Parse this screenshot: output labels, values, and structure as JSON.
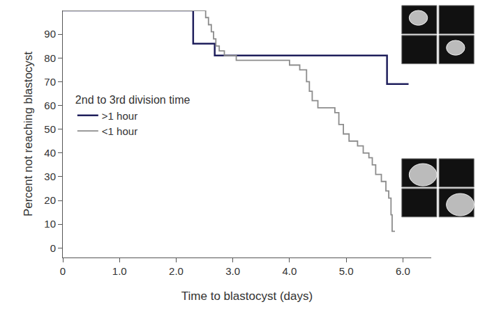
{
  "chart_data": {
    "type": "line",
    "line_style": "step",
    "x_label": "Time to blastocyst (days)",
    "y_label": "Percent not reaching blastocyst",
    "legend_title": "2nd to 3rd division time",
    "legend": "left",
    "grid": false,
    "xlim": [
      0,
      6.5
    ],
    "ylim": [
      -4,
      100
    ],
    "xticks": [
      0,
      {
        "value": 1,
        "label": "1.0"
      },
      {
        "value": 2,
        "label": "2.0"
      },
      {
        "value": 3,
        "label": "3.0"
      },
      {
        "value": 4,
        "label": "4.0"
      },
      {
        "value": 5,
        "label": "5.0"
      },
      {
        "value": 6,
        "label": "6.0"
      }
    ],
    "yticks": [
      0,
      10,
      20,
      30,
      40,
      50,
      60,
      70,
      80,
      90
    ],
    "series": [
      {
        "name": ">1 hour",
        "color": "#1f1f5c",
        "x": [
          0,
          2.3,
          2.68,
          5.72,
          6.1
        ],
        "values": [
          100,
          86,
          81,
          69,
          69
        ]
      },
      {
        "name": "<1 hour",
        "color": "#8c8c8c",
        "x": [
          0,
          2.52,
          2.57,
          2.62,
          2.66,
          2.7,
          2.76,
          2.85,
          3.0,
          3.06,
          4.0,
          4.18,
          4.3,
          4.35,
          4.4,
          4.5,
          4.8,
          4.87,
          4.95,
          5.05,
          5.2,
          5.3,
          5.4,
          5.46,
          5.52,
          5.62,
          5.7,
          5.75,
          5.79,
          5.81,
          5.86
        ],
        "values": [
          100,
          97,
          94,
          91,
          88,
          85,
          83,
          81,
          81,
          79,
          77,
          75,
          70,
          66,
          62,
          59,
          57,
          52,
          48,
          45,
          43,
          40,
          38,
          35,
          31,
          28,
          24,
          21,
          14,
          7,
          7
        ]
      }
    ]
  }
}
